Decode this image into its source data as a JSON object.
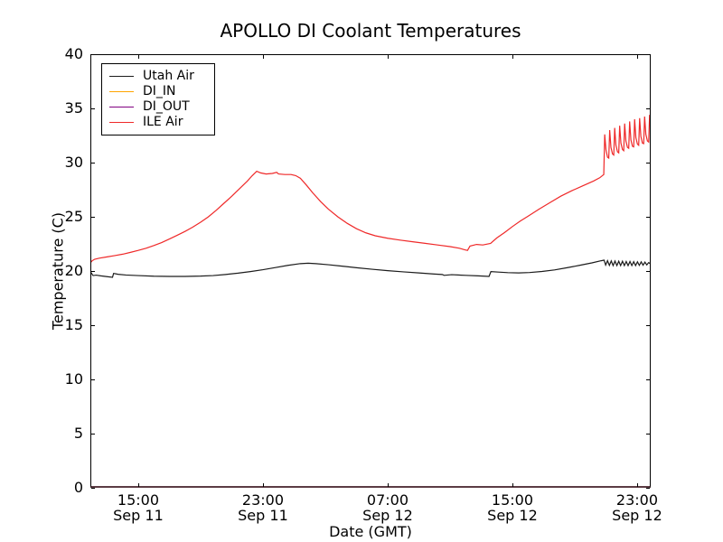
{
  "figure": {
    "title": "APOLLO DI Coolant Temperatures"
  },
  "chart_data": {
    "type": "line",
    "title": "APOLLO DI Coolant Temperatures",
    "xlabel": "Date (GMT)",
    "ylabel": "Temperature (C)",
    "ylim": [
      0,
      40
    ],
    "yticks": [
      0,
      5,
      10,
      15,
      20,
      25,
      30,
      35,
      40
    ],
    "x_unit": "hours since Sep 11 00:00 GMT",
    "xlim": [
      11.93,
      47.87
    ],
    "xticks": [
      {
        "t": 15,
        "time": "15:00",
        "date": "Sep 11"
      },
      {
        "t": 23,
        "time": "23:00",
        "date": "Sep 11"
      },
      {
        "t": 31,
        "time": "07:00",
        "date": "Sep 12"
      },
      {
        "t": 39,
        "time": "15:00",
        "date": "Sep 12"
      },
      {
        "t": 47,
        "time": "23:00",
        "date": "Sep 12"
      }
    ],
    "grid": false,
    "legend_position": "upper left",
    "legend_entries": [
      "Utah Air",
      "DI_IN",
      "DI_OUT",
      "ILE Air"
    ],
    "series": [
      {
        "label": "Utah Air",
        "color": "#1c1c1c",
        "points": [
          [
            11.93,
            19.95
          ],
          [
            12.0,
            19.8
          ],
          [
            12.1,
            19.58
          ],
          [
            12.3,
            19.62
          ],
          [
            12.6,
            19.55
          ],
          [
            13.0,
            19.48
          ],
          [
            13.35,
            19.42
          ],
          [
            13.42,
            19.78
          ],
          [
            13.7,
            19.7
          ],
          [
            14.2,
            19.63
          ],
          [
            15.0,
            19.58
          ],
          [
            16.0,
            19.52
          ],
          [
            17.0,
            19.5
          ],
          [
            18.0,
            19.5
          ],
          [
            19.0,
            19.53
          ],
          [
            19.8,
            19.58
          ],
          [
            20.6,
            19.68
          ],
          [
            21.4,
            19.8
          ],
          [
            22.2,
            19.95
          ],
          [
            23.0,
            20.12
          ],
          [
            23.8,
            20.32
          ],
          [
            24.6,
            20.52
          ],
          [
            25.4,
            20.68
          ],
          [
            25.9,
            20.72
          ],
          [
            26.4,
            20.68
          ],
          [
            27.2,
            20.58
          ],
          [
            28.0,
            20.46
          ],
          [
            29.0,
            20.3
          ],
          [
            30.0,
            20.16
          ],
          [
            31.0,
            20.03
          ],
          [
            32.0,
            19.92
          ],
          [
            33.0,
            19.82
          ],
          [
            34.0,
            19.72
          ],
          [
            34.5,
            19.68
          ],
          [
            34.62,
            19.6
          ],
          [
            35.1,
            19.66
          ],
          [
            36.0,
            19.6
          ],
          [
            36.8,
            19.55
          ],
          [
            37.5,
            19.5
          ],
          [
            37.62,
            19.95
          ],
          [
            38.1,
            19.9
          ],
          [
            38.7,
            19.85
          ],
          [
            39.4,
            19.82
          ],
          [
            40.1,
            19.86
          ],
          [
            40.9,
            19.96
          ],
          [
            41.7,
            20.1
          ],
          [
            42.5,
            20.3
          ],
          [
            43.3,
            20.52
          ],
          [
            44.1,
            20.75
          ],
          [
            44.7,
            20.95
          ],
          [
            44.88,
            21.0
          ],
          [
            44.98,
            20.55
          ],
          [
            45.1,
            20.95
          ],
          [
            45.22,
            20.52
          ],
          [
            45.34,
            20.93
          ],
          [
            45.46,
            20.5
          ],
          [
            45.58,
            20.92
          ],
          [
            45.7,
            20.5
          ],
          [
            45.82,
            20.9
          ],
          [
            45.94,
            20.5
          ],
          [
            46.06,
            20.9
          ],
          [
            46.18,
            20.5
          ],
          [
            46.3,
            20.88
          ],
          [
            46.42,
            20.5
          ],
          [
            46.54,
            20.88
          ],
          [
            46.66,
            20.5
          ],
          [
            46.78,
            20.86
          ],
          [
            46.9,
            20.5
          ],
          [
            47.02,
            20.85
          ],
          [
            47.14,
            20.52
          ],
          [
            47.26,
            20.84
          ],
          [
            47.38,
            20.54
          ],
          [
            47.5,
            20.82
          ],
          [
            47.62,
            20.56
          ],
          [
            47.74,
            20.78
          ],
          [
            47.87,
            20.65
          ]
        ]
      },
      {
        "label": "DI_IN",
        "color": "#ffa500",
        "points": [
          [
            11.93,
            0
          ],
          [
            47.87,
            0
          ]
        ]
      },
      {
        "label": "DI_OUT",
        "color": "#800080",
        "points": [
          [
            11.93,
            0
          ],
          [
            47.87,
            0
          ]
        ]
      },
      {
        "label": "ILE Air",
        "color": "#ef2929",
        "points": [
          [
            11.93,
            20.75
          ],
          [
            12.05,
            20.95
          ],
          [
            12.2,
            21.08
          ],
          [
            12.5,
            21.18
          ],
          [
            13.0,
            21.3
          ],
          [
            13.5,
            21.42
          ],
          [
            14.0,
            21.55
          ],
          [
            14.5,
            21.72
          ],
          [
            15.0,
            21.9
          ],
          [
            15.5,
            22.1
          ],
          [
            16.0,
            22.35
          ],
          [
            16.5,
            22.62
          ],
          [
            17.0,
            22.95
          ],
          [
            17.5,
            23.3
          ],
          [
            18.0,
            23.65
          ],
          [
            18.5,
            24.05
          ],
          [
            19.0,
            24.5
          ],
          [
            19.5,
            25.0
          ],
          [
            20.0,
            25.6
          ],
          [
            20.5,
            26.25
          ],
          [
            21.0,
            26.9
          ],
          [
            21.5,
            27.6
          ],
          [
            22.0,
            28.3
          ],
          [
            22.3,
            28.78
          ],
          [
            22.6,
            29.2
          ],
          [
            22.85,
            29.05
          ],
          [
            23.2,
            28.95
          ],
          [
            23.6,
            29.0
          ],
          [
            23.88,
            29.1
          ],
          [
            24.0,
            28.95
          ],
          [
            24.4,
            28.9
          ],
          [
            24.8,
            28.9
          ],
          [
            25.1,
            28.8
          ],
          [
            25.4,
            28.55
          ],
          [
            25.8,
            27.9
          ],
          [
            26.2,
            27.2
          ],
          [
            26.7,
            26.4
          ],
          [
            27.2,
            25.7
          ],
          [
            27.8,
            25.0
          ],
          [
            28.4,
            24.4
          ],
          [
            29.0,
            23.9
          ],
          [
            29.6,
            23.52
          ],
          [
            30.2,
            23.25
          ],
          [
            31.0,
            23.02
          ],
          [
            31.8,
            22.85
          ],
          [
            32.6,
            22.7
          ],
          [
            33.4,
            22.55
          ],
          [
            34.2,
            22.4
          ],
          [
            35.0,
            22.25
          ],
          [
            35.6,
            22.1
          ],
          [
            35.95,
            21.95
          ],
          [
            36.12,
            21.9
          ],
          [
            36.28,
            22.3
          ],
          [
            36.7,
            22.45
          ],
          [
            37.1,
            22.4
          ],
          [
            37.6,
            22.55
          ],
          [
            38.0,
            23.05
          ],
          [
            38.5,
            23.55
          ],
          [
            39.0,
            24.1
          ],
          [
            39.5,
            24.6
          ],
          [
            40.0,
            25.05
          ],
          [
            40.7,
            25.7
          ],
          [
            41.4,
            26.3
          ],
          [
            42.1,
            26.9
          ],
          [
            42.8,
            27.4
          ],
          [
            43.5,
            27.85
          ],
          [
            44.2,
            28.3
          ],
          [
            44.6,
            28.6
          ],
          [
            44.86,
            28.9
          ],
          [
            44.92,
            32.6
          ],
          [
            45.0,
            31.2
          ],
          [
            45.1,
            30.5
          ],
          [
            45.18,
            30.42
          ],
          [
            45.24,
            33.0
          ],
          [
            45.32,
            31.4
          ],
          [
            45.42,
            30.8
          ],
          [
            45.5,
            30.7
          ],
          [
            45.56,
            33.2
          ],
          [
            45.64,
            31.6
          ],
          [
            45.74,
            31.0
          ],
          [
            45.82,
            30.9
          ],
          [
            45.88,
            33.4
          ],
          [
            45.96,
            31.8
          ],
          [
            46.06,
            31.2
          ],
          [
            46.14,
            31.1
          ],
          [
            46.2,
            33.6
          ],
          [
            46.28,
            32.0
          ],
          [
            46.38,
            31.4
          ],
          [
            46.46,
            31.32
          ],
          [
            46.52,
            33.8
          ],
          [
            46.6,
            32.1
          ],
          [
            46.7,
            31.5
          ],
          [
            46.78,
            31.45
          ],
          [
            46.84,
            34.0
          ],
          [
            46.92,
            32.3
          ],
          [
            47.02,
            31.7
          ],
          [
            47.1,
            31.6
          ],
          [
            47.16,
            34.1
          ],
          [
            47.24,
            32.42
          ],
          [
            47.34,
            31.8
          ],
          [
            47.42,
            31.75
          ],
          [
            47.48,
            34.25
          ],
          [
            47.56,
            32.6
          ],
          [
            47.66,
            32.0
          ],
          [
            47.74,
            31.9
          ],
          [
            47.8,
            34.4
          ],
          [
            47.87,
            33.8
          ]
        ]
      }
    ]
  }
}
